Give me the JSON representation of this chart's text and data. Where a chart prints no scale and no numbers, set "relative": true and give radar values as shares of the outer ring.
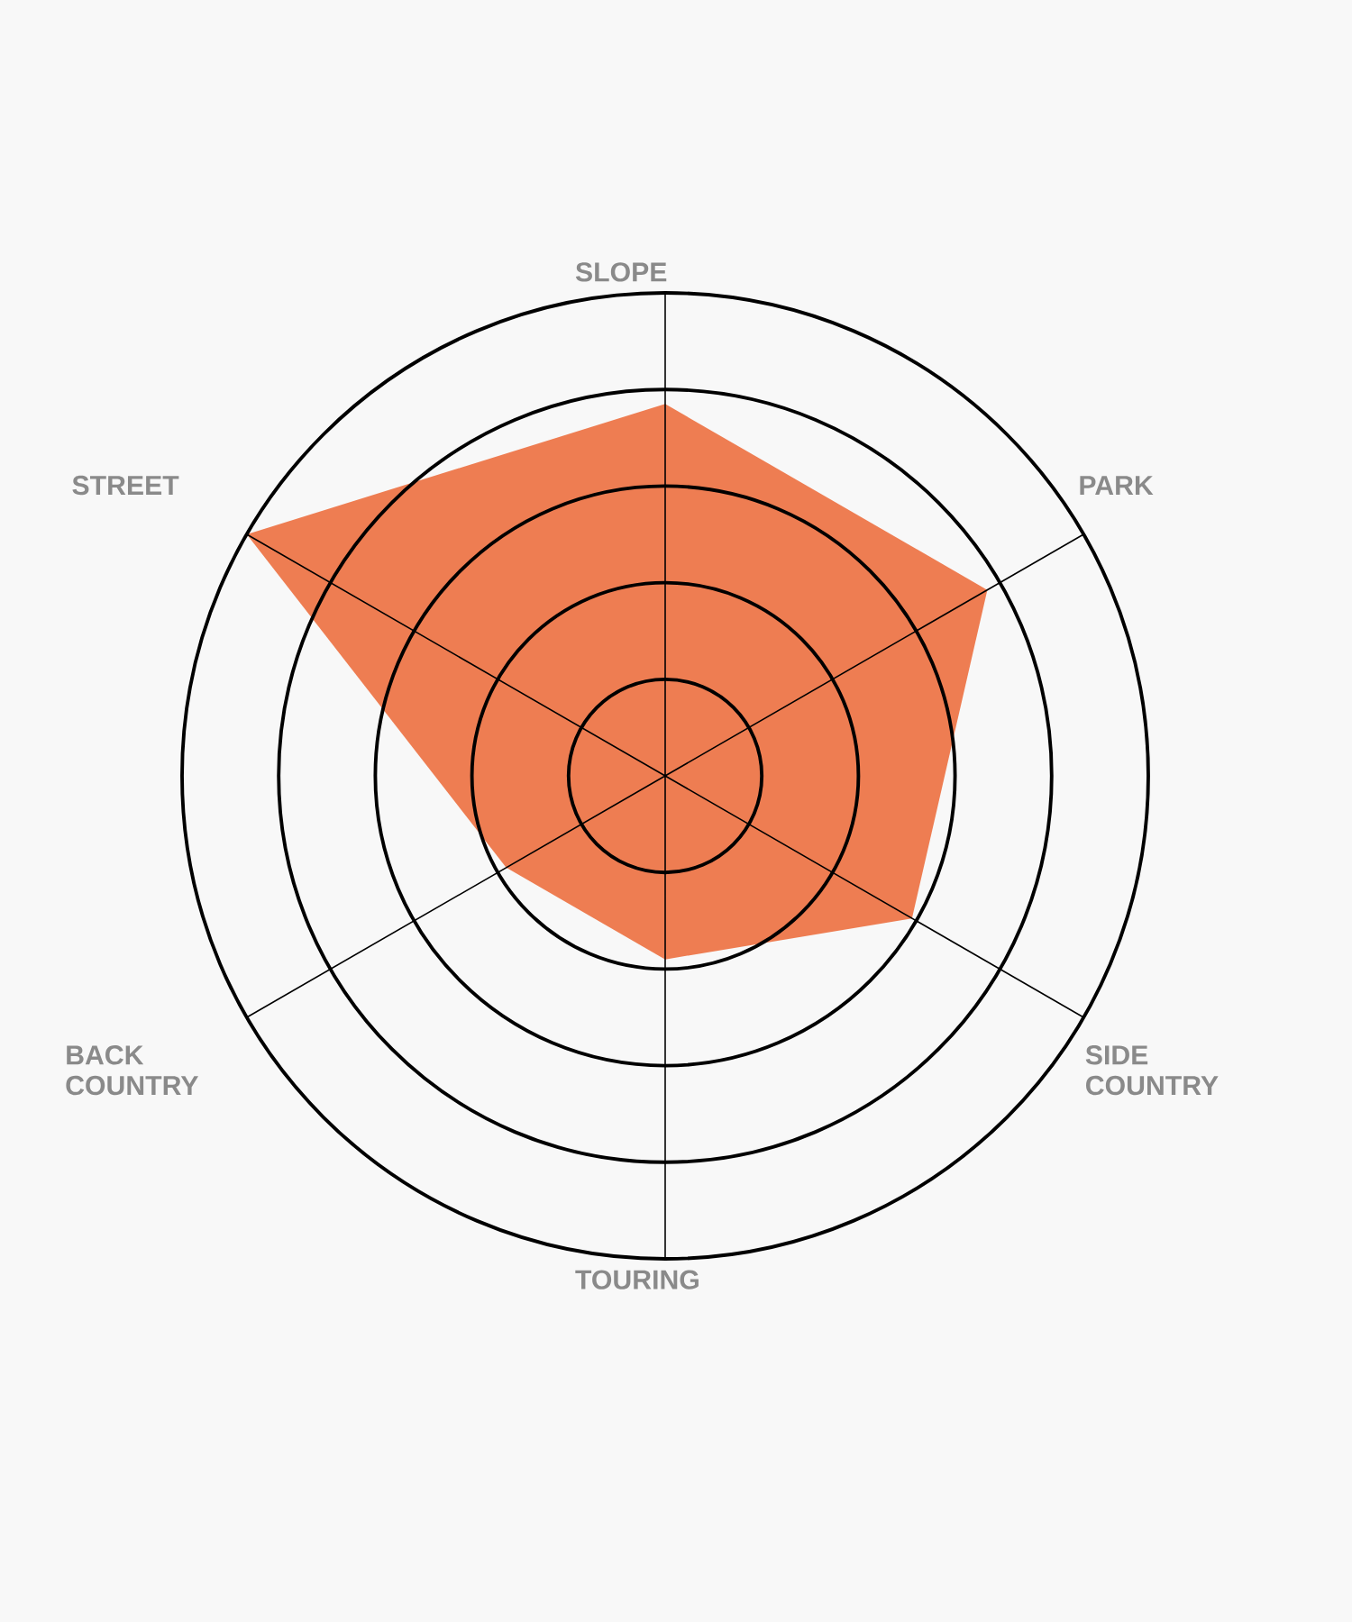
{
  "chart_data": {
    "type": "radar",
    "relative": true,
    "grid": true,
    "categories": [
      "SLOPE",
      "PARK",
      "SIDE COUNTRY",
      "TOURING",
      "BACK COUNTRY",
      "STREET"
    ],
    "series": [
      {
        "color": "#ee7d52",
        "values": [
          0.77,
          0.77,
          0.59,
          0.38,
          0.38,
          1.0
        ]
      }
    ]
  }
}
